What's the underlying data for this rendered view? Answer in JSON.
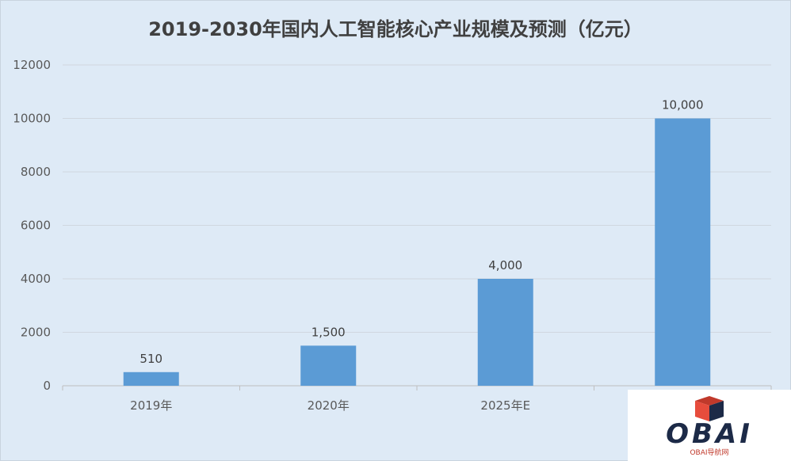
{
  "chart_data": {
    "type": "bar",
    "title": "2019-2030年国内人工智能核心产业规模及预测（亿元）",
    "categories": [
      "2019年",
      "2020年",
      "2025年E",
      ""
    ],
    "values": [
      510,
      1500,
      4000,
      10000
    ],
    "data_labels": [
      "510",
      "1,500",
      "4,000",
      "10,000"
    ],
    "ylim": [
      0,
      12000
    ],
    "yticks": [
      "0",
      "2000",
      "4000",
      "6000",
      "8000",
      "10000",
      "12000"
    ],
    "grid": true,
    "legend": "none",
    "bar_color": "#5b9bd5"
  },
  "watermark": {
    "brand": "OBAI",
    "sub": "OBAI导航网",
    "icon": "cube-logo-icon"
  }
}
